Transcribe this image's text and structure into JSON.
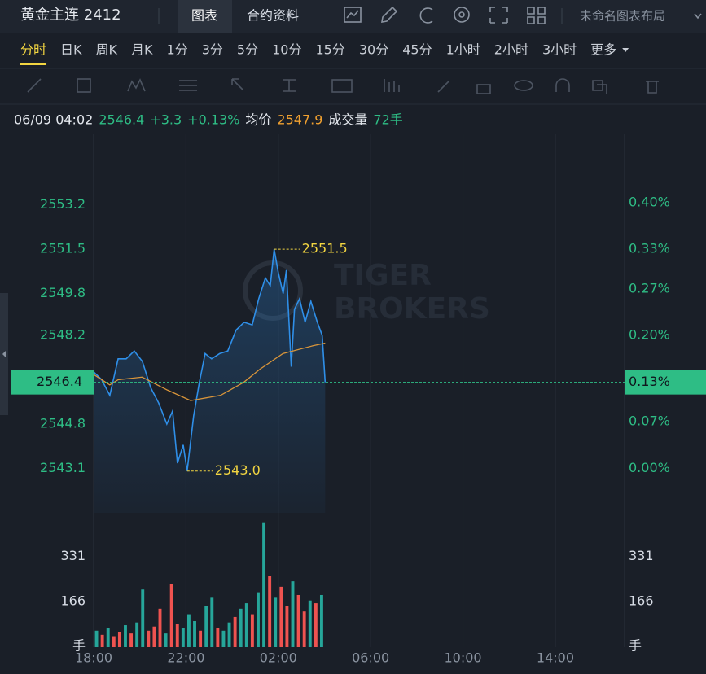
{
  "header": {
    "title": "黄金主连 2412",
    "tabs": [
      "图表",
      "合约资料"
    ],
    "layout_name": "未命名图表布局"
  },
  "timeframes": {
    "items": [
      "分时",
      "日K",
      "周K",
      "月K",
      "1分",
      "3分",
      "5分",
      "10分",
      "15分",
      "30分",
      "45分",
      "1小时",
      "2小时",
      "3小时",
      "更多"
    ],
    "active": 0
  },
  "info": {
    "datetime": "06/09 04:02",
    "price": "2546.4",
    "change": "+3.3",
    "change_pct": "+0.13%",
    "avg_label": "均价",
    "avg": "2547.9",
    "volume_label": "成交量",
    "volume": "72手"
  },
  "watermark": [
    "TIGER",
    "BROKERS"
  ],
  "chart_data": [
    {
      "type": "line",
      "xlim": [
        0,
        23
      ],
      "xticks": [
        {
          "value": 0,
          "label": "18:00"
        },
        {
          "value": 4,
          "label": "22:00"
        },
        {
          "value": 8,
          "label": "02:00"
        },
        {
          "value": 12,
          "label": "06:00"
        },
        {
          "value": 16,
          "label": "10:00"
        },
        {
          "value": 20,
          "label": "14:00"
        }
      ],
      "grid": "x",
      "ylim": [
        2541.4,
        2555.9
      ],
      "yticks": [
        2543.1,
        2544.8,
        2548.2,
        2549.8,
        2551.5,
        2553.2
      ],
      "y2lim": [
        -0.067,
        0.503
      ],
      "y2ticks": [
        {
          "value": 0,
          "label": "0.00%"
        },
        {
          "value": 0.07,
          "label": "0.07%"
        },
        {
          "value": 0.2,
          "label": "0.20%"
        },
        {
          "value": 0.27,
          "label": "0.27%"
        },
        {
          "value": 0.33,
          "label": "0.33%"
        },
        {
          "value": 0.4,
          "label": "0.40%"
        }
      ],
      "x": [
        0,
        0.35,
        0.7,
        1.06,
        1.41,
        1.76,
        2.11,
        2.47,
        2.82,
        3.17,
        3.42,
        3.63,
        3.88,
        4.05,
        4.33,
        4.58,
        4.83,
        5.11,
        5.46,
        5.81,
        6.17,
        6.52,
        6.87,
        7.15,
        7.44,
        7.65,
        7.82,
        8.0,
        8.21,
        8.35,
        8.56,
        8.7,
        8.92,
        9.16,
        9.41,
        9.69,
        9.9,
        10.03
      ],
      "series": [
        {
          "color": "#2f8fe8",
          "values": [
            2546.8,
            2546.5,
            2545.9,
            2547.3,
            2547.3,
            2547.6,
            2547.2,
            2546.2,
            2545.6,
            2544.8,
            2545.3,
            2543.3,
            2544.0,
            2543.0,
            2545.1,
            2546.4,
            2547.5,
            2547.3,
            2547.5,
            2547.6,
            2548.4,
            2548.7,
            2548.6,
            2549.6,
            2550.4,
            2550.1,
            2551.5,
            2550.6,
            2549.8,
            2550.7,
            2547.0,
            2549.2,
            2549.6,
            2548.7,
            2549.5,
            2548.7,
            2548.2,
            2546.4
          ]
        },
        {
          "color": "#d9953a",
          "x": [
            0,
            0.7,
            1.06,
            2.1,
            3.2,
            4.2,
            5.5,
            6.5,
            7.2,
            8.2,
            9.5,
            10.03
          ],
          "values": [
            2546.7,
            2546.3,
            2546.5,
            2546.6,
            2546.1,
            2545.7,
            2545.9,
            2546.4,
            2546.9,
            2547.5,
            2547.8,
            2547.9
          ]
        }
      ],
      "annotations": [
        {
          "x": 7.82,
          "value": 2551.5
        },
        {
          "x": 4.05,
          "value": 2543,
          "label": "2543.0"
        }
      ],
      "annotation_color": "#f2d541",
      "last": {
        "value": 2546.4,
        "pct": {
          "value": 0.13,
          "label": "0.13%"
        },
        "color": "#2ebd85"
      }
    },
    {
      "type": "bar",
      "xlim": [
        0,
        23
      ],
      "ylim": [
        0,
        460
      ],
      "yticks": [
        166,
        331
      ],
      "unit": "手",
      "x": [
        0.125,
        0.375,
        0.625,
        0.875,
        1.125,
        1.375,
        1.625,
        1.875,
        2.125,
        2.375,
        2.625,
        2.875,
        3.125,
        3.375,
        3.625,
        3.875,
        4.125,
        4.375,
        4.625,
        4.875,
        5.125,
        5.375,
        5.625,
        5.875,
        6.125,
        6.375,
        6.625,
        6.875,
        7.125,
        7.375,
        7.625,
        7.875,
        8.125,
        8.375,
        8.625,
        8.875,
        9.125,
        9.375,
        9.625,
        9.875
      ],
      "values": [
        60,
        45,
        70,
        40,
        55,
        80,
        50,
        90,
        210,
        60,
        75,
        140,
        50,
        230,
        85,
        70,
        120,
        95,
        60,
        150,
        180,
        70,
        60,
        90,
        110,
        140,
        160,
        120,
        200,
        455,
        260,
        180,
        220,
        150,
        240,
        190,
        130,
        170,
        160,
        190
      ],
      "colors": [
        "#26a69a",
        "#ef5350",
        "#26a69a",
        "#ef5350",
        "#ef5350",
        "#26a69a",
        "#ef5350",
        "#26a69a",
        "#26a69a",
        "#ef5350",
        "#ef5350",
        "#ef5350",
        "#26a69a",
        "#ef5350",
        "#ef5350",
        "#26a69a",
        "#26a69a",
        "#26a69a",
        "#ef5350",
        "#26a69a",
        "#26a69a",
        "#ef5350",
        "#26a69a",
        "#26a69a",
        "#ef5350",
        "#26a69a",
        "#26a69a",
        "#ef5350",
        "#26a69a",
        "#26a69a",
        "#ef5350",
        "#26a69a",
        "#ef5350",
        "#ef5350",
        "#26a69a",
        "#ef5350",
        "#ef5350",
        "#26a69a",
        "#ef5350",
        "#26a69a"
      ]
    }
  ]
}
